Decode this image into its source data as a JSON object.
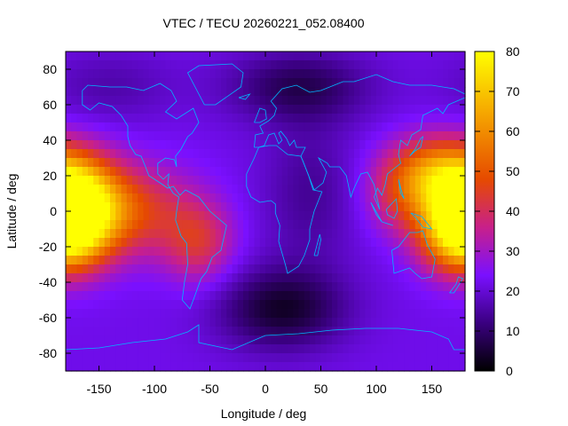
{
  "chart_data": {
    "type": "heatmap",
    "title": "VTEC / TECU 20260221_052.08400",
    "xlabel": "Longitude / deg",
    "ylabel": "Latitude / deg",
    "xlim": [
      -180,
      180
    ],
    "ylim": [
      -90,
      90
    ],
    "x_ticks": [
      -150,
      -100,
      -50,
      0,
      50,
      100,
      150
    ],
    "y_ticks": [
      -80,
      -60,
      -40,
      -20,
      0,
      20,
      40,
      60,
      80
    ],
    "colorbar": {
      "range": [
        0,
        80
      ],
      "ticks": [
        0,
        10,
        20,
        30,
        40,
        50,
        60,
        70,
        80
      ],
      "palette": [
        "#000000",
        "#3a0080",
        "#7a10ff",
        "#c8208a",
        "#e64a00",
        "#f5a300",
        "#ffff00"
      ]
    },
    "grid": false,
    "features": [
      {
        "lon": -170,
        "lat": 10,
        "vtec": 72
      },
      {
        "lon": 175,
        "lat": -15,
        "vtec": 75
      },
      {
        "lon": 160,
        "lat": 20,
        "vtec": 55
      },
      {
        "lon": -60,
        "lat": -15,
        "vtec": 38
      },
      {
        "lon": 15,
        "lat": -55,
        "vtec": 5
      },
      {
        "lon": 30,
        "lat": 70,
        "vtec": 8
      }
    ]
  }
}
